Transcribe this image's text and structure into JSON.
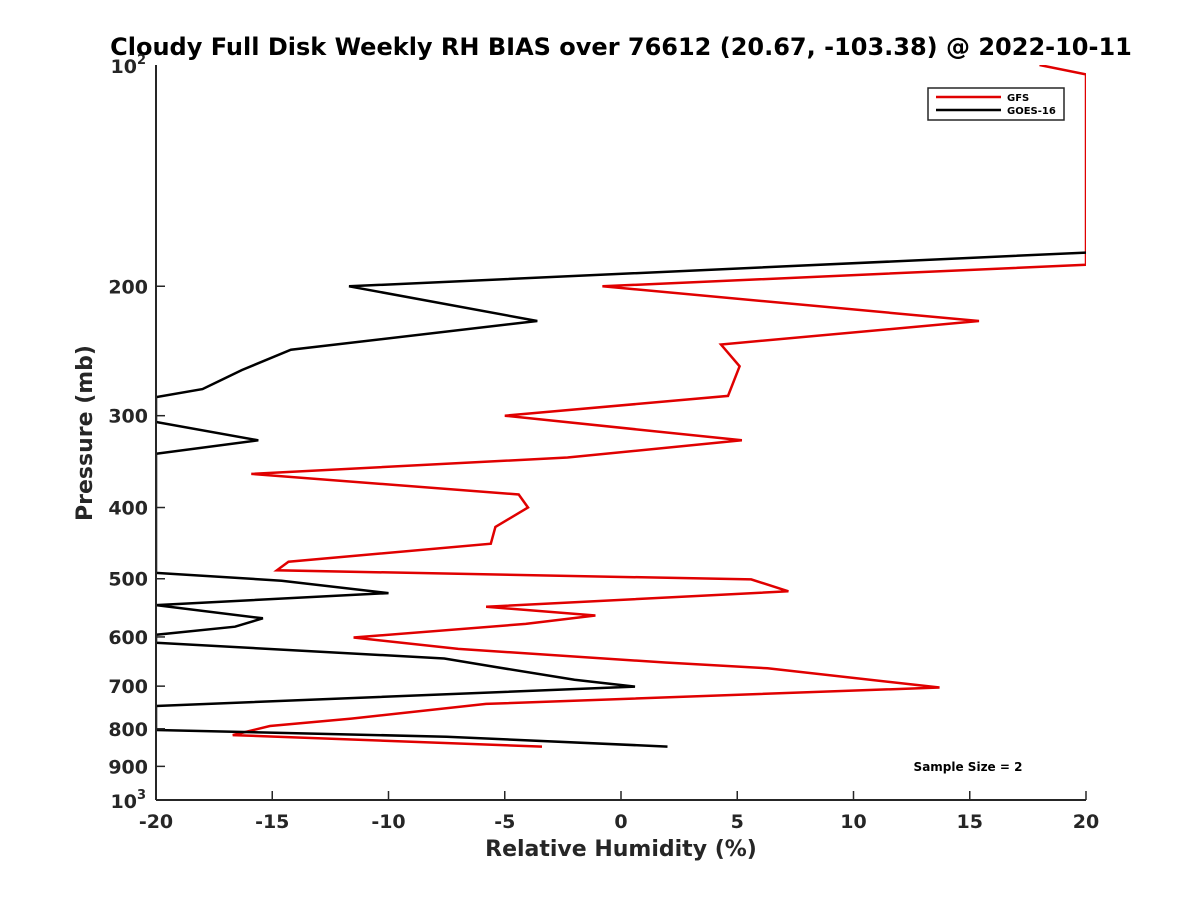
{
  "chart_data": {
    "type": "line",
    "title": "Cloudy Full Disk Weekly RH BIAS over 76612 (20.67, -103.38) @ 2022-10-11",
    "xlabel": "Relative Humidity (%)",
    "ylabel": "Pressure (mb)",
    "xlim": [
      -20,
      20
    ],
    "ylim": [
      100,
      1000
    ],
    "yscale": "log",
    "y_reversed": true,
    "x_ticks": [
      -20,
      -15,
      -10,
      -5,
      0,
      5,
      10,
      15,
      20
    ],
    "x_tick_labels": [
      "-20",
      "-15",
      "-10",
      "-5",
      "0",
      "5",
      "10",
      "15",
      "20"
    ],
    "y_ticks": [
      200,
      300,
      400,
      500,
      600,
      700,
      800,
      900
    ],
    "y_tick_labels": [
      "200",
      "300",
      "400",
      "500",
      "600",
      "700",
      "800",
      "900"
    ],
    "y_edge_labels": [
      {
        "value": 100,
        "base": "10",
        "exp": "2"
      },
      {
        "value": 1000,
        "base": "10",
        "exp": "3"
      }
    ],
    "legend_position": "top-right",
    "annotation": "Sample Size = 2",
    "series": [
      {
        "name": "GFS",
        "color": "#e00000",
        "points": [
          [
            18.0,
            100
          ],
          [
            20.0,
            103
          ],
          [
            20.0,
            187
          ],
          [
            -0.8,
            200
          ],
          [
            15.4,
            223
          ],
          [
            4.3,
            240
          ],
          [
            5.1,
            257
          ],
          [
            4.6,
            282
          ],
          [
            -5.0,
            300
          ],
          [
            5.2,
            324
          ],
          [
            -2.3,
            342
          ],
          [
            -15.9,
            360
          ],
          [
            -4.4,
            384
          ],
          [
            -4.0,
            400
          ],
          [
            -5.4,
            425
          ],
          [
            -5.6,
            448
          ],
          [
            -14.3,
            474
          ],
          [
            -14.8,
            487
          ],
          [
            5.6,
            501
          ],
          [
            7.2,
            520
          ],
          [
            -5.8,
            546
          ],
          [
            -1.1,
            561
          ],
          [
            -4.1,
            576
          ],
          [
            -11.5,
            601
          ],
          [
            -7.0,
            623
          ],
          [
            1.9,
            650
          ],
          [
            6.3,
            662
          ],
          [
            13.7,
            703
          ],
          [
            -5.8,
            740
          ],
          [
            -11.6,
            775
          ],
          [
            -15.1,
            793
          ],
          [
            -16.7,
            816
          ],
          [
            -3.4,
            846
          ]
        ]
      },
      {
        "name": "GOES-16",
        "color": "#000000",
        "points": [
          [
            20.0,
            180
          ],
          [
            -11.7,
            200
          ],
          [
            -3.6,
            223
          ],
          [
            -14.2,
            244
          ],
          [
            -16.3,
            260
          ],
          [
            -18.0,
            276
          ],
          [
            -20.0,
            283
          ],
          [
            -20.0,
            306
          ],
          [
            -15.6,
            324
          ],
          [
            -20.0,
            338
          ],
          [
            -20.0,
            491
          ],
          [
            -14.6,
            503
          ],
          [
            -10.0,
            523
          ],
          [
            -20.0,
            543
          ],
          [
            -15.4,
            566
          ],
          [
            -16.6,
            581
          ],
          [
            -20.0,
            596
          ],
          [
            -20.0,
            611
          ],
          [
            -7.6,
            642
          ],
          [
            -5.3,
            660
          ],
          [
            -2.0,
            686
          ],
          [
            0.6,
            701
          ],
          [
            -20.0,
            745
          ],
          [
            -20.0,
            803
          ],
          [
            -7.5,
            820
          ],
          [
            2.0,
            846
          ]
        ]
      }
    ]
  }
}
